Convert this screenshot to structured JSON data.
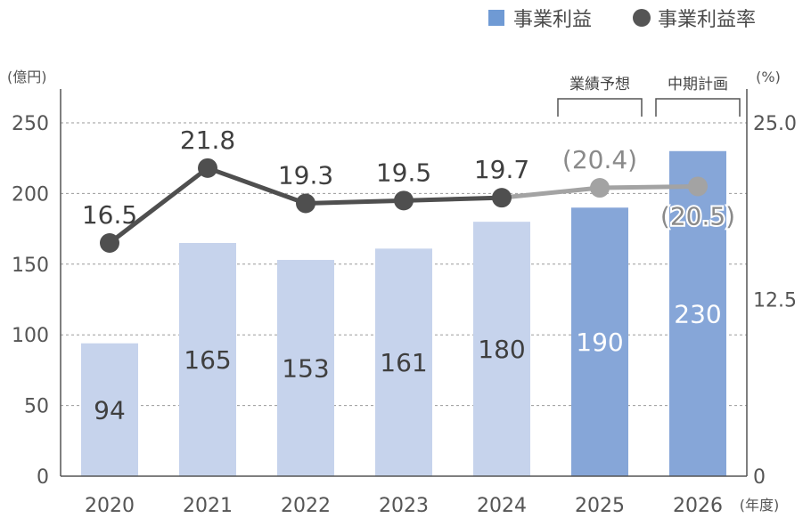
{
  "chart_data": {
    "type": "bar",
    "categories": [
      "2020",
      "2021",
      "2022",
      "2023",
      "2024",
      "2025",
      "2026"
    ],
    "series": [
      {
        "name": "事業利益",
        "axis": "left",
        "values": [
          94,
          165,
          153,
          161,
          180,
          190,
          230
        ],
        "value_labels": [
          "94",
          "165",
          "153",
          "161",
          "180",
          "190",
          "230"
        ]
      },
      {
        "name": "事業利益率",
        "axis": "right",
        "type": "line",
        "values": [
          16.5,
          21.8,
          19.3,
          19.5,
          19.7,
          20.4,
          20.5
        ],
        "value_labels": [
          "16.5",
          "21.8",
          "19.3",
          "19.5",
          "19.7",
          "(20.4)",
          "(20.5)"
        ]
      }
    ],
    "left_axis": {
      "unit": "(億円)",
      "ylim": [
        0,
        250
      ],
      "ticks": [
        "0",
        "50",
        "100",
        "150",
        "200",
        "250"
      ]
    },
    "right_axis": {
      "unit": "(%)",
      "ylim": [
        0,
        25
      ],
      "ticks": [
        "0",
        "12.5",
        "25.0"
      ]
    },
    "x_unit": "(年度)",
    "brackets": [
      {
        "label": "業績予想",
        "category": "2025"
      },
      {
        "label": "中期計画",
        "category": "2026"
      }
    ],
    "grid": true,
    "legend_position": "top-right",
    "colors": {
      "bar_actual": "#c6d3ec",
      "bar_projected": "#86a6d8",
      "line_actual": "#4f4f4f",
      "line_projected": "#a3a3a3",
      "legend_bar": "#6f9ad4",
      "legend_dot": "#555555"
    }
  }
}
